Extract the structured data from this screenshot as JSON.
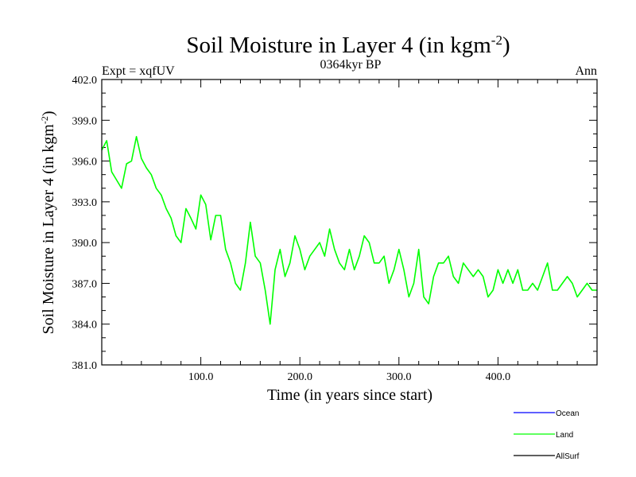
{
  "chart_data": {
    "type": "line",
    "title": "Soil Moisture in Layer 4 (in kgm",
    "title_sup": "-2",
    "title_close": ")",
    "subtitle_left": "Expt = xqfUV",
    "subtitle_center": "0364kyr BP",
    "subtitle_right": "Ann",
    "xlabel": "Time (in years since start)",
    "ylabel": "Soil Moisture in Layer 4 (in kgm",
    "ylabel_sup": "-2",
    "ylabel_close": ")",
    "xlim": [
      0,
      500
    ],
    "ylim": [
      381,
      402
    ],
    "xticks": [
      100,
      200,
      300,
      400
    ],
    "xtick_labels": [
      "100.0",
      "200.0",
      "300.0",
      "400.0"
    ],
    "yticks": [
      381,
      384,
      387,
      390,
      393,
      396,
      399,
      402
    ],
    "ytick_labels": [
      "381.0",
      "384.0",
      "387.0",
      "390.0",
      "393.0",
      "396.0",
      "399.0",
      "402.0"
    ],
    "legend": [
      {
        "name": "Ocean",
        "color": "#0000ff"
      },
      {
        "name": "Land",
        "color": "#00ff00"
      },
      {
        "name": "AllSurf",
        "color": "#000000"
      }
    ],
    "series": [
      {
        "name": "Land",
        "color": "#00ff00",
        "x_start": 0,
        "x_step": 5,
        "values": [
          396.8,
          397.5,
          395.2,
          394.6,
          394.0,
          395.8,
          396.0,
          397.8,
          396.2,
          395.5,
          395.0,
          394.0,
          393.5,
          392.5,
          391.8,
          390.5,
          390.0,
          392.5,
          391.8,
          391.0,
          393.5,
          392.8,
          390.2,
          392.0,
          392.0,
          389.5,
          388.5,
          387.0,
          386.5,
          388.5,
          391.5,
          389.0,
          388.5,
          386.5,
          384.0,
          388.0,
          389.5,
          387.5,
          388.5,
          390.5,
          389.5,
          388.0,
          389.0,
          389.5,
          390.0,
          389.0,
          391.0,
          389.5,
          388.5,
          388.0,
          389.5,
          388.0,
          389.0,
          390.5,
          390.0,
          388.5,
          388.5,
          389.0,
          387.0,
          388.0,
          389.5,
          388.0,
          386.0,
          387.0,
          389.5,
          386.0,
          385.5,
          387.5,
          388.5,
          388.5,
          389.0,
          387.5,
          387.0,
          388.5,
          388.0,
          387.5,
          388.0,
          387.5,
          386.0,
          386.5,
          388.0,
          387.0,
          388.0,
          387.0,
          388.0,
          386.5,
          386.5,
          387.0,
          386.5,
          387.5,
          388.5,
          386.5,
          386.5,
          387.0,
          387.5,
          387.0,
          386.0,
          386.5,
          387.0,
          386.5,
          386.5
        ]
      }
    ]
  }
}
